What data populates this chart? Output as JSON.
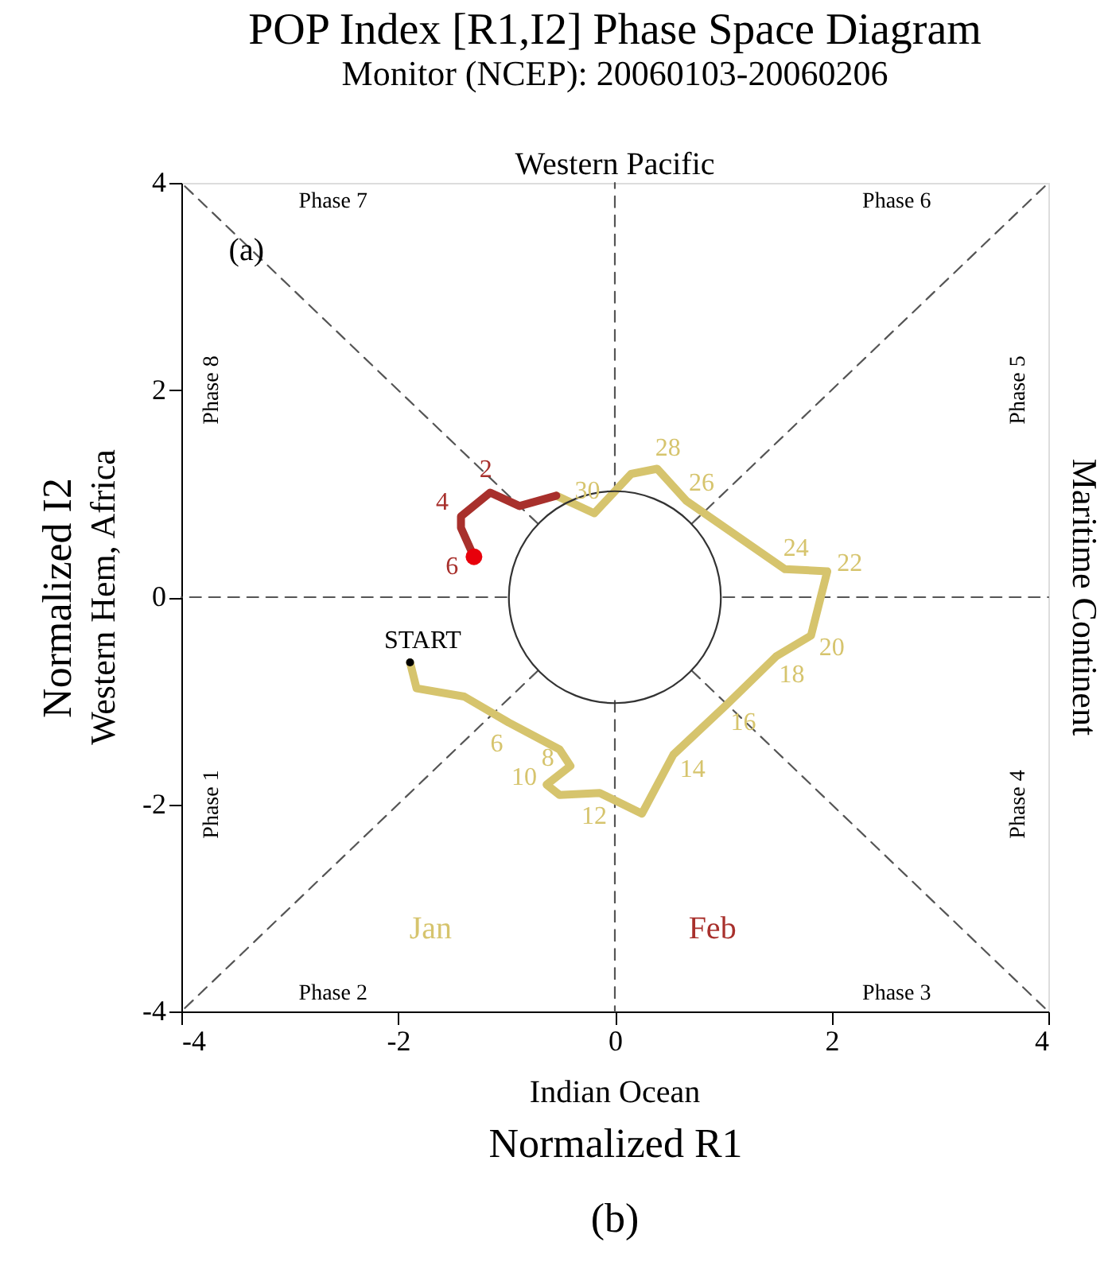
{
  "chart_data": {
    "type": "line",
    "title": "POP Index [R1,I2] Phase Space Diagram",
    "subtitle": "Monitor (NCEP): 20060103-20060206",
    "xlabel": "Normalized R1",
    "ylabel": "Normalized I2",
    "xlim": [
      -4,
      4
    ],
    "ylim": [
      -4,
      4
    ],
    "xticks": [
      -4,
      -2,
      0,
      2,
      4
    ],
    "yticks": [
      -4,
      -2,
      0,
      2,
      4
    ],
    "grid": false,
    "legend": "bottom",
    "series": [
      {
        "line_style": "dashed",
        "color": "#555555",
        "x": [
          0,
          0
        ],
        "values": [
          1,
          4
        ]
      },
      {
        "line_style": "dashed",
        "color": "#555555",
        "x": [
          0,
          0
        ],
        "values": [
          -1,
          -4
        ]
      },
      {
        "line_style": "dashed",
        "color": "#555555",
        "x": [
          1,
          4
        ],
        "values": [
          0,
          0
        ]
      },
      {
        "line_style": "dashed",
        "color": "#555555",
        "x": [
          -1,
          -4
        ],
        "values": [
          0,
          0
        ]
      },
      {
        "line_style": "dashed",
        "color": "#555555",
        "x": [
          0.71,
          4
        ],
        "values": [
          0.71,
          4
        ]
      },
      {
        "line_style": "dashed",
        "color": "#555555",
        "x": [
          -0.71,
          -4
        ],
        "values": [
          0.71,
          4
        ]
      },
      {
        "line_style": "dashed",
        "color": "#555555",
        "x": [
          0.71,
          4
        ],
        "values": [
          -0.71,
          -4
        ]
      },
      {
        "line_style": "dashed",
        "color": "#555555",
        "x": [
          -0.71,
          -4
        ],
        "values": [
          -0.71,
          -4
        ]
      },
      {
        "name": "Jan",
        "line_style": "solid",
        "color": "#d6c46d",
        "x": [
          -1.89,
          -1.83,
          -1.39,
          -0.98,
          -0.51,
          -0.41,
          -0.63,
          -0.51,
          -0.14,
          0.25,
          0.54,
          1.03,
          1.49,
          1.81,
          1.96,
          1.57,
          0.66,
          0.39,
          0.15,
          -0.19,
          -0.54
        ],
        "values": [
          -0.63,
          -0.88,
          -0.96,
          -1.21,
          -1.47,
          -1.63,
          -1.81,
          -1.91,
          -1.89,
          -2.09,
          -1.52,
          -1.04,
          -0.57,
          -0.37,
          0.25,
          0.27,
          0.93,
          1.24,
          1.19,
          0.81,
          0.98
        ]
      },
      {
        "name": "Feb",
        "line_style": "solid",
        "color": "#a8302c",
        "x": [
          -0.54,
          -0.88,
          -1.15,
          -1.42,
          -1.42,
          -1.3
        ],
        "values": [
          0.98,
          0.88,
          1.01,
          0.78,
          0.67,
          0.39
        ]
      },
      {
        "type": "scatter",
        "marker": "circle",
        "color": "#e8000b",
        "x": [
          -1.3
        ],
        "values": [
          0.39
        ]
      }
    ],
    "annotations": [
      "Phase 1",
      "Phase 2",
      "Phase 3",
      "Phase 4",
      "Phase 5",
      "Phase 6",
      "Phase 7",
      "Phase 8",
      "(a)",
      "Western Pacific",
      "Indian Ocean",
      "Maritime Continent",
      "Western Hem, Africa",
      "(b)",
      {
        "text": "START",
        "x": -1.89,
        "y": -0.63
      },
      {
        "text": "6",
        "x": -0.98,
        "y": -1.21
      },
      {
        "text": "8",
        "x": -0.41,
        "y": -1.63
      },
      {
        "text": "10",
        "x": -0.63,
        "y": -1.81
      },
      {
        "text": "12",
        "x": -0.14,
        "y": -1.89
      },
      {
        "text": "14",
        "x": 0.54,
        "y": -1.52
      },
      {
        "text": "16",
        "x": 1.03,
        "y": -1.04
      },
      {
        "text": "18",
        "x": 1.49,
        "y": -0.57
      },
      {
        "text": "20",
        "x": 1.81,
        "y": -0.37
      },
      {
        "text": "22",
        "x": 1.96,
        "y": 0.25
      },
      {
        "text": "24",
        "x": 1.57,
        "y": 0.27
      },
      {
        "text": "26",
        "x": 0.66,
        "y": 0.93
      },
      {
        "text": "28",
        "x": 0.39,
        "y": 1.24
      },
      {
        "text": "30",
        "x": -0.19,
        "y": 0.81
      },
      {
        "text": "2",
        "x": -1.15,
        "y": 1.01
      },
      {
        "text": "4",
        "x": -1.42,
        "y": 0.78
      },
      {
        "text": "6",
        "x": -1.3,
        "y": 0.39
      }
    ]
  }
}
